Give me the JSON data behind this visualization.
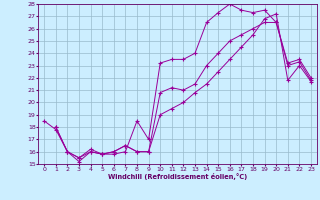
{
  "xlabel": "Windchill (Refroidissement éolien,°C)",
  "background_color": "#cceeff",
  "grid_color": "#99bbcc",
  "line_color": "#990099",
  "xlim": [
    -0.5,
    23.5
  ],
  "ylim": [
    15,
    28
  ],
  "yticks": [
    15,
    16,
    17,
    18,
    19,
    20,
    21,
    22,
    23,
    24,
    25,
    26,
    27,
    28
  ],
  "xticks": [
    0,
    1,
    2,
    3,
    4,
    5,
    6,
    7,
    8,
    9,
    10,
    11,
    12,
    13,
    14,
    15,
    16,
    17,
    18,
    19,
    20,
    21,
    22,
    23
  ],
  "series": [
    {
      "x": [
        0,
        1,
        2,
        3,
        4,
        5,
        6,
        7,
        8,
        9,
        10,
        11,
        12,
        13,
        14,
        15,
        16,
        17,
        18,
        19,
        20,
        21,
        22,
        23
      ],
      "y": [
        18.5,
        17.8,
        16.0,
        15.2,
        16.0,
        15.8,
        15.8,
        16.0,
        18.5,
        17.0,
        23.2,
        23.5,
        23.5,
        24.0,
        26.5,
        27.3,
        28.0,
        27.5,
        27.3,
        27.5,
        26.5,
        23.0,
        23.3,
        21.8
      ]
    },
    {
      "x": [
        1,
        2,
        3,
        4,
        5,
        6,
        7,
        8,
        9,
        10,
        11,
        12,
        13,
        14,
        15,
        16,
        17,
        18,
        19,
        20,
        21,
        22,
        23
      ],
      "y": [
        18.0,
        16.0,
        15.5,
        16.2,
        15.8,
        16.0,
        16.5,
        16.0,
        16.0,
        20.8,
        21.2,
        21.0,
        21.5,
        23.0,
        24.0,
        25.0,
        25.5,
        26.0,
        26.5,
        26.5,
        23.2,
        23.5,
        22.0
      ]
    },
    {
      "x": [
        1,
        2,
        3,
        4,
        5,
        6,
        7,
        8,
        9,
        10,
        11,
        12,
        13,
        14,
        15,
        16,
        17,
        18,
        19,
        20,
        21,
        22,
        23
      ],
      "y": [
        18.0,
        16.0,
        15.5,
        16.0,
        15.8,
        16.0,
        16.5,
        16.0,
        16.0,
        19.0,
        19.5,
        20.0,
        20.8,
        21.5,
        22.5,
        23.5,
        24.5,
        25.5,
        26.8,
        27.2,
        21.8,
        23.0,
        21.7
      ]
    }
  ]
}
